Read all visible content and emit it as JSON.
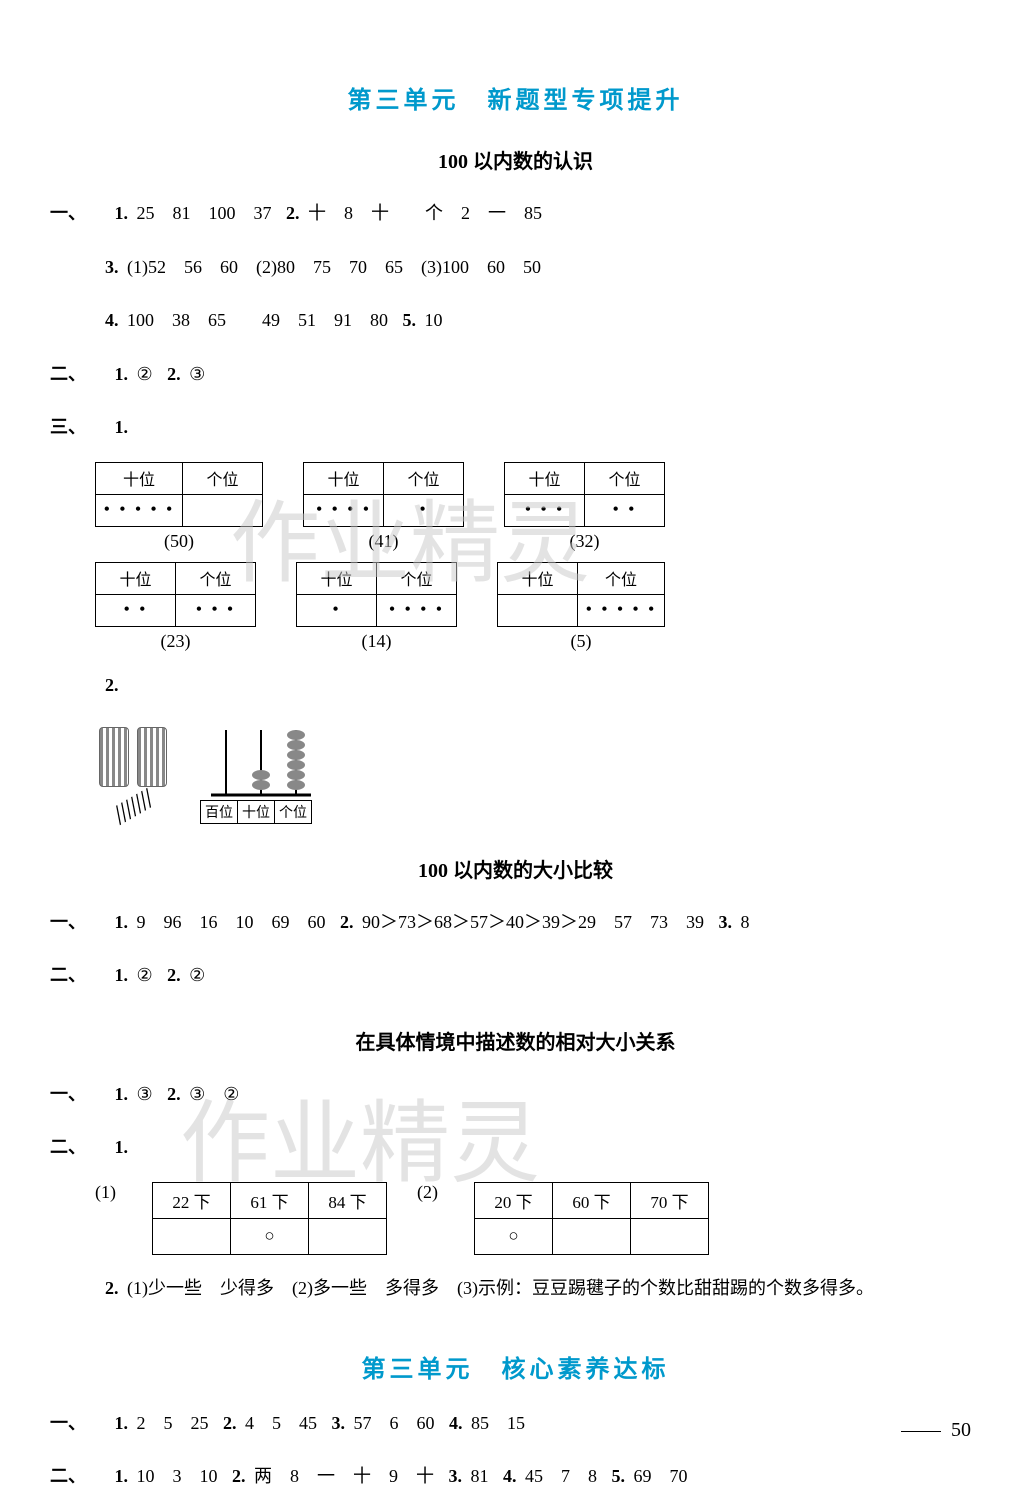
{
  "title1": "第三单元　新题型专项提升",
  "section_a": {
    "subtitle": "100 以内数的认识",
    "q1": {
      "label": "一、",
      "items": [
        {
          "n": "1.",
          "text": "25　81　100　37"
        },
        {
          "n": "2.",
          "text": "十　8　十　　个　2　一　85"
        },
        {
          "n": "3.",
          "text": "(1)52　56　60　(2)80　75　70　65　(3)100　60　50"
        },
        {
          "n": "4.",
          "text": "100　38　65　　49　51　91　80"
        },
        {
          "n": "5.",
          "text": "10"
        }
      ]
    },
    "q2": {
      "label": "二、",
      "items": [
        {
          "n": "1.",
          "text": "②"
        },
        {
          "n": "2.",
          "text": "③"
        }
      ]
    },
    "q3": {
      "label": "三、",
      "n1": "1.",
      "tables_row1": [
        {
          "h1": "十位",
          "h2": "个位",
          "d1": "•••••",
          "d2": "",
          "val": "(50)"
        },
        {
          "h1": "十位",
          "h2": "个位",
          "d1": "••••",
          "d2": "•",
          "val": "(41)"
        },
        {
          "h1": "十位",
          "h2": "个位",
          "d1": "•••",
          "d2": "••",
          "val": "(32)"
        }
      ],
      "tables_row2": [
        {
          "h1": "十位",
          "h2": "个位",
          "d1": "••",
          "d2": "•••",
          "val": "(23)"
        },
        {
          "h1": "十位",
          "h2": "个位",
          "d1": "•",
          "d2": "••••",
          "val": "(14)"
        },
        {
          "h1": "十位",
          "h2": "个位",
          "d1": "",
          "d2": "•••••",
          "val": "(5)"
        }
      ],
      "n2": "2.",
      "abacus_labels": [
        "百位",
        "十位",
        "个位"
      ]
    }
  },
  "section_b": {
    "subtitle": "100 以内数的大小比较",
    "q1": {
      "label": "一、",
      "items": [
        {
          "n": "1.",
          "text": "9　96　16　10　69　60"
        },
        {
          "n": "2.",
          "text": "90＞73＞68＞57＞40＞39＞29　57　73　39"
        },
        {
          "n": "3.",
          "text": "8"
        }
      ]
    },
    "q2": {
      "label": "二、",
      "items": [
        {
          "n": "1.",
          "text": "②"
        },
        {
          "n": "2.",
          "text": "②"
        }
      ]
    }
  },
  "section_c": {
    "subtitle": "在具体情境中描述数的相对大小关系",
    "q1": {
      "label": "一、",
      "items": [
        {
          "n": "1.",
          "text": "③"
        },
        {
          "n": "2.",
          "text": "③　②"
        }
      ]
    },
    "q2": {
      "label": "二、",
      "n1": "1.",
      "t1": {
        "sub": "(1)",
        "r1": [
          "22 下",
          "61 下",
          "84 下"
        ],
        "r2": [
          "",
          "○",
          ""
        ]
      },
      "t2": {
        "sub": "(2)",
        "r1": [
          "20 下",
          "60 下",
          "70 下"
        ],
        "r2": [
          "○",
          "",
          ""
        ]
      },
      "item2": {
        "n": "2.",
        "text": "(1)少一些　少得多　(2)多一些　多得多　(3)示例：豆豆踢毽子的个数比甜甜踢的个数多得多。"
      }
    }
  },
  "title2": "第三单元　核心素养达标",
  "section_d": {
    "q1": {
      "label": "一、",
      "items": [
        {
          "n": "1.",
          "text": "2　5　25"
        },
        {
          "n": "2.",
          "text": "4　5　45"
        },
        {
          "n": "3.",
          "text": "57　6　60"
        },
        {
          "n": "4.",
          "text": "85　15"
        }
      ]
    },
    "q2": {
      "label": "二、",
      "items": [
        {
          "n": "1.",
          "text": "10　3　10"
        },
        {
          "n": "2.",
          "text": "两　8　一　十　9　十"
        },
        {
          "n": "3.",
          "text": "81"
        },
        {
          "n": "4.",
          "text": "45　7　8"
        },
        {
          "n": "5.",
          "text": "69　70"
        }
      ]
    }
  },
  "page_num": "50",
  "watermark": "作业精灵"
}
